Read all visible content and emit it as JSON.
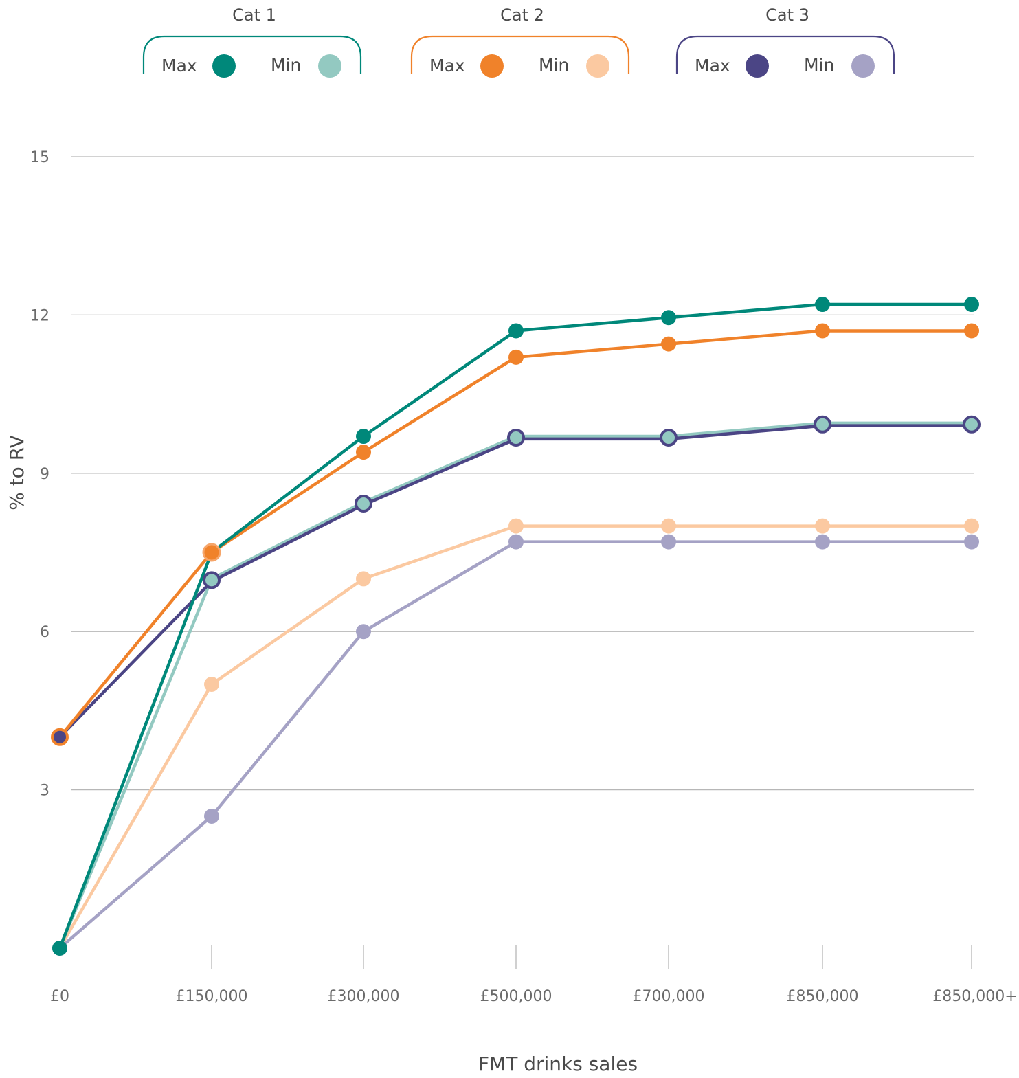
{
  "chart_data": {
    "type": "line",
    "xlabel": "FMT drinks sales",
    "ylabel": "% to RV",
    "categories": [
      "£0",
      "£150,000",
      "£300,000",
      "£500,000",
      "£700,000",
      "£850,000",
      "£850,000+"
    ],
    "ylim": [
      0,
      15
    ],
    "yticks": [
      3,
      6,
      9,
      12,
      15
    ],
    "grid": "horizontal",
    "legend": {
      "placement": "top",
      "groups": [
        {
          "title": "Cat 1",
          "max_label": "Max",
          "min_label": "Min",
          "color": "#00887a",
          "max_series": 0,
          "min_series": 1
        },
        {
          "title": "Cat 2",
          "max_label": "Max",
          "min_label": "Min",
          "color": "#f0822a",
          "max_series": 2,
          "min_series": 3
        },
        {
          "title": "Cat 3",
          "max_label": "Max",
          "min_label": "Min",
          "color": "#4b4585",
          "max_series": 4,
          "min_series": 5
        }
      ]
    },
    "series": [
      {
        "name": "Cat 1 Max",
        "color": "#00887a",
        "marker": "filled",
        "values": [
          0.0,
          7.5,
          9.7,
          11.7,
          11.95,
          12.2,
          12.2
        ]
      },
      {
        "name": "Cat 1 Min",
        "color": "#93c9c1",
        "marker": "ringed",
        "values": [
          0.0,
          7.0,
          8.45,
          9.7,
          9.7,
          9.95,
          9.95
        ]
      },
      {
        "name": "Cat 2 Max",
        "color": "#f0822a",
        "marker": "ringed-light",
        "values": [
          4.0,
          7.5,
          9.4,
          11.2,
          11.45,
          11.7,
          11.7
        ]
      },
      {
        "name": "Cat 2 Min",
        "color": "#fbc9a1",
        "marker": "filled",
        "values": [
          0.0,
          5.0,
          7.0,
          8.0,
          8.0,
          8.0,
          8.0
        ]
      },
      {
        "name": "Cat 3 Max",
        "color": "#4b4585",
        "marker": "none",
        "values": [
          4.0,
          6.95,
          8.4,
          9.65,
          9.65,
          9.9,
          9.9
        ]
      },
      {
        "name": "Cat 3 Min",
        "color": "#a5a2c5",
        "marker": "filled",
        "values": [
          0.0,
          2.5,
          6.0,
          7.7,
          7.7,
          7.7,
          7.7
        ]
      }
    ]
  }
}
